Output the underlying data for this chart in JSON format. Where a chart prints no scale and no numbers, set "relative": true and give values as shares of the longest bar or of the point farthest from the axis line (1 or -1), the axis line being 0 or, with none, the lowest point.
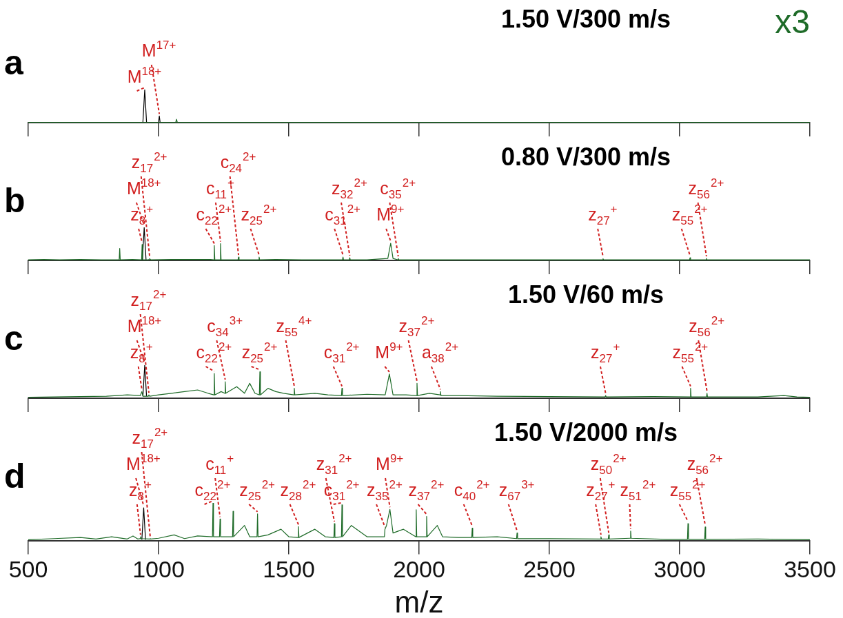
{
  "chart_data": [
    {
      "type": "line",
      "title": "a",
      "subtitle": "1.50 V/300 m/s",
      "relative": true,
      "marker": "none",
      "tick_labels": false,
      "xlim": [
        500,
        3500
      ],
      "xticks": [
        500,
        1000,
        1500,
        2000,
        2500,
        3000,
        3500
      ],
      "annotations": [
        {
          "text": "M$^{18+}$",
          "x": 947,
          "y": 1
        },
        {
          "text": "M$^{17+}$",
          "x": 1003,
          "y": 0.2
        },
        "x3"
      ],
      "series": [
        {
          "color": "#1e6b28",
          "x": [
            500,
            700,
            900,
            935,
            1066,
            1069,
            1072,
            1200,
            1500,
            2000,
            2500,
            3000,
            3500
          ],
          "values": [
            0.01,
            0.01,
            0.01,
            0.01,
            0.01,
            0.1,
            0.01,
            0.01,
            0.01,
            0.01,
            0.01,
            0.01,
            0.01
          ]
        },
        {
          "color": "#000000",
          "x": [
            940,
            947,
            954,
            1000,
            1003,
            1006
          ],
          "values": [
            0.01,
            1,
            0.01,
            0.01,
            0.2,
            0.01
          ]
        }
      ]
    },
    {
      "type": "line",
      "title": "b",
      "subtitle": "0.80 V/300 m/s",
      "relative": true,
      "marker": "none",
      "tick_labels": false,
      "xlim": [
        500,
        3500
      ],
      "xticks": [
        500,
        1000,
        1500,
        2000,
        2500,
        3000,
        3500
      ],
      "annotations": [
        {
          "text": "z$_{8}$$^{+}$",
          "x": 937,
          "y": 0.48
        },
        {
          "text": "M$^{18+}$",
          "x": 945,
          "y": 1
        },
        {
          "text": "z$_{17}$$^{2+}$",
          "x": 966,
          "y": 0.05
        },
        {
          "text": "c$_{22}$$^{2+}$",
          "x": 1214,
          "y": 0.45
        },
        {
          "text": "c$_{11}$$^{+}$",
          "x": 1238,
          "y": 0.51
        },
        {
          "text": "c$_{24}$$^{2+}$",
          "x": 1307,
          "y": 0.1
        },
        {
          "text": "z$_{25}$$^{2+}$",
          "x": 1386,
          "y": 0.1
        },
        {
          "text": "c$_{31}$$^{2+}$",
          "x": 1708,
          "y": 0.1
        },
        {
          "text": "z$_{32}$$^{2+}$",
          "x": 1734,
          "y": 0.08
        },
        {
          "text": "M$^{9+}$",
          "x": 1891,
          "y": 0.52
        },
        {
          "text": "c$_{35}$$^{2+}$",
          "x": 1920,
          "y": 0.06
        },
        {
          "text": "z$_{27}$$^{+}$",
          "x": 2706,
          "y": 0.05
        },
        {
          "text": "z$_{55}$$^{2+}$",
          "x": 3040,
          "y": 0.08
        },
        {
          "text": "z$_{56}$$^{2+}$",
          "x": 3103,
          "y": 0.06
        }
      ],
      "series": [
        {
          "color": "#1e6b28",
          "x": [
            500,
            560,
            620,
            700,
            780,
            849,
            851,
            853,
            900,
            935,
            937,
            939,
            962,
            966,
            970,
            1050,
            1120,
            1200,
            1212,
            1214,
            1216,
            1236,
            1238,
            1240,
            1305,
            1307,
            1309,
            1384,
            1386,
            1388,
            1450,
            1550,
            1650,
            1706,
            1708,
            1710,
            1732,
            1734,
            1736,
            1800,
            1880,
            1891,
            1900,
            1918,
            1920,
            1922,
            2000,
            2100,
            2200,
            2300,
            2400,
            2500,
            2600,
            2704,
            2706,
            2708,
            2800,
            2900,
            3000,
            3038,
            3040,
            3042,
            3101,
            3103,
            3105,
            3200,
            3300,
            3400,
            3500
          ],
          "values": [
            0.02,
            0.03,
            0.02,
            0.03,
            0.02,
            0.02,
            0.36,
            0.02,
            0.03,
            0.02,
            0.48,
            0.02,
            0.02,
            0.05,
            0.02,
            0.03,
            0.03,
            0.03,
            0.02,
            0.45,
            0.02,
            0.02,
            0.51,
            0.02,
            0.02,
            0.1,
            0.02,
            0.02,
            0.1,
            0.02,
            0.03,
            0.02,
            0.02,
            0.02,
            0.1,
            0.02,
            0.02,
            0.08,
            0.02,
            0.02,
            0.06,
            0.52,
            0.06,
            0.02,
            0.06,
            0.02,
            0.02,
            0.02,
            0.02,
            0.02,
            0.02,
            0.02,
            0.02,
            0.02,
            0.05,
            0.02,
            0.02,
            0.02,
            0.02,
            0.02,
            0.08,
            0.02,
            0.02,
            0.06,
            0.02,
            0.02,
            0.02,
            0.02,
            0.02
          ]
        },
        {
          "color": "#000000",
          "x": [
            938,
            945,
            952
          ],
          "values": [
            0.02,
            1,
            0.02
          ]
        }
      ]
    },
    {
      "type": "line",
      "title": "c",
      "subtitle": "1.50 V/60 m/s",
      "relative": true,
      "marker": "none",
      "tick_labels": false,
      "xlim": [
        500,
        3500
      ],
      "xticks": [
        500,
        1000,
        1500,
        2000,
        2500,
        3000,
        3500
      ],
      "annotations": [
        {
          "text": "z$_{8}$$^{+}$",
          "x": 936,
          "y": 0.2
        },
        {
          "text": "M$^{18+}$",
          "x": 947,
          "y": 1
        },
        {
          "text": "z$_{17}$$^{2+}$",
          "x": 963,
          "y": 0.1
        },
        {
          "text": "c$_{22}$$^{2+}$",
          "x": 1214,
          "y": 0.75
        },
        {
          "text": "c$_{34}$$^{3+}$",
          "x": 1256,
          "y": 0.5
        },
        {
          "text": "z$_{25}$$^{2+}$",
          "x": 1389,
          "y": 0.8
        },
        {
          "text": "z$_{55}$$^{4+}$",
          "x": 1521,
          "y": 0.3
        },
        {
          "text": "c$_{31}$$^{2+}$",
          "x": 1704,
          "y": 0.3
        },
        {
          "text": "M$^{9+}$",
          "x": 1886,
          "y": 0.73
        },
        {
          "text": "z$_{37}$$^{2+}$",
          "x": 1992,
          "y": 0.45
        },
        {
          "text": "a$_{38}$$^{2+}$",
          "x": 2082,
          "y": 0.2
        },
        {
          "text": "z$_{27}$$^{+}$",
          "x": 2716,
          "y": 0.08
        },
        {
          "text": "z$_{55}$$^{2+}$",
          "x": 3042,
          "y": 0.3
        },
        {
          "text": "z$_{56}$$^{2+}$",
          "x": 3105,
          "y": 0.15
        }
      ],
      "series": [
        {
          "color": "#1e6b28",
          "x": [
            500,
            600,
            700,
            800,
            880,
            930,
            936,
            940,
            961,
            963,
            966,
            1000,
            1050,
            1100,
            1150,
            1190,
            1212,
            1214,
            1216,
            1240,
            1254,
            1256,
            1258,
            1300,
            1330,
            1350,
            1370,
            1387,
            1389,
            1391,
            1420,
            1450,
            1480,
            1519,
            1521,
            1523,
            1600,
            1650,
            1702,
            1704,
            1706,
            1800,
            1870,
            1886,
            1900,
            1950,
            1990,
            1992,
            1994,
            2040,
            2080,
            2082,
            2084,
            2150,
            2300,
            2500,
            2714,
            2716,
            2718,
            2900,
            3040,
            3042,
            3044,
            3103,
            3105,
            3107,
            3300,
            3400,
            3450,
            3500
          ],
          "values": [
            0.03,
            0.04,
            0.05,
            0.06,
            0.1,
            0.08,
            0.2,
            0.06,
            0.06,
            0.1,
            0.06,
            0.1,
            0.15,
            0.2,
            0.25,
            0.15,
            0.1,
            0.75,
            0.1,
            0.2,
            0.15,
            0.5,
            0.15,
            0.35,
            0.15,
            0.45,
            0.15,
            0.1,
            0.8,
            0.1,
            0.3,
            0.2,
            0.15,
            0.1,
            0.3,
            0.1,
            0.15,
            0.1,
            0.08,
            0.3,
            0.08,
            0.12,
            0.1,
            0.73,
            0.1,
            0.1,
            0.08,
            0.45,
            0.08,
            0.15,
            0.1,
            0.2,
            0.08,
            0.08,
            0.06,
            0.05,
            0.04,
            0.08,
            0.04,
            0.05,
            0.04,
            0.3,
            0.04,
            0.04,
            0.15,
            0.04,
            0.04,
            0.08,
            0.04,
            0.03
          ]
        },
        {
          "color": "#000000",
          "x": [
            940,
            947,
            954
          ],
          "values": [
            0.06,
            1,
            0.06
          ]
        }
      ]
    },
    {
      "type": "line",
      "title": "d",
      "subtitle": "1.50 V/2000 m/s",
      "xlabel": "m/z",
      "relative": true,
      "marker": "none",
      "xlim": [
        500,
        3500
      ],
      "xticks": [
        500,
        1000,
        1500,
        2000,
        2500,
        3000,
        3500
      ],
      "annotations": [
        {
          "text": "z$_{8}$$^{+}$",
          "x": 931,
          "y": 0.1
        },
        {
          "text": "M$^{18+}$",
          "x": 943,
          "y": 0.87
        },
        {
          "text": "z$_{17}$$^{2+}$",
          "x": 968,
          "y": 0.05
        },
        {
          "text": "c$_{22}$$^{2+}$",
          "x": 1209,
          "y": 1
        },
        {
          "text": "c$_{11}$$^{+}$",
          "x": 1236,
          "y": 0.57
        },
        {
          "text": "z$_{25}$$^{2+}$",
          "x": 1380,
          "y": 0.71
        },
        {
          "text": "z$_{28}$$^{2+}$",
          "x": 1537,
          "y": 0.37
        },
        {
          "text": "z$_{31}$$^{2+}$",
          "x": 1675,
          "y": 0.45
        },
        {
          "text": "c$_{31}$$^{2+}$",
          "x": 1704,
          "y": 0.95
        },
        {
          "text": "z$_{35}$$^{2+}$",
          "x": 1869,
          "y": 0.3
        },
        {
          "text": "M$^{9+}$",
          "x": 1888,
          "y": 0.83
        },
        {
          "text": "z$_{37}$$^{2+}$",
          "x": 2029,
          "y": 0.64
        },
        {
          "text": "c$_{40}$$^{2+}$",
          "x": 2204,
          "y": 0.33
        },
        {
          "text": "z$_{67}$$^{3+}$",
          "x": 2376,
          "y": 0.2
        },
        {
          "text": "z$_{27}$$^{+}$",
          "x": 2698,
          "y": 0.1
        },
        {
          "text": "z$_{50}$$^{2+}$",
          "x": 2728,
          "y": 0.15
        },
        {
          "text": "z$_{51}$$^{2+}$",
          "x": 2812,
          "y": 0.25
        },
        {
          "text": "z$_{55}$$^{2+}$",
          "x": 3032,
          "y": 0.45
        },
        {
          "text": "z$_{56}$$^{2+}$",
          "x": 3098,
          "y": 0.36
        }
      ],
      "series": [
        {
          "color": "#1e6b28",
          "x": [
            500,
            600,
            700,
            760,
            820,
            880,
            902,
            920,
            929,
            931,
            933,
            966,
            968,
            970,
            1000,
            1060,
            1100,
            1150,
            1207,
            1209,
            1211,
            1234,
            1236,
            1238,
            1284,
            1286,
            1288,
            1330,
            1350,
            1378,
            1380,
            1382,
            1420,
            1470,
            1500,
            1535,
            1537,
            1539,
            1600,
            1640,
            1673,
            1675,
            1677,
            1702,
            1704,
            1706,
            1740,
            1800,
            1867,
            1869,
            1875,
            1888,
            1900,
            1940,
            1987,
            1989,
            1991,
            2027,
            2029,
            2031,
            2070,
            2090,
            2150,
            2202,
            2204,
            2206,
            2300,
            2374,
            2376,
            2378,
            2500,
            2696,
            2698,
            2700,
            2726,
            2728,
            2730,
            2810,
            2812,
            2814,
            2950,
            3030,
            3032,
            3034,
            3096,
            3098,
            3100,
            3300,
            3500
          ],
          "values": [
            0.02,
            0.05,
            0.08,
            0.04,
            0.1,
            0.04,
            0.12,
            0.04,
            0.05,
            0.1,
            0.05,
            0.04,
            0.05,
            0.04,
            0.06,
            0.15,
            0.05,
            0.12,
            0.1,
            1,
            0.1,
            0.1,
            0.57,
            0.1,
            0.1,
            0.78,
            0.1,
            0.4,
            0.1,
            0.1,
            0.71,
            0.1,
            0.15,
            0.3,
            0.1,
            0.08,
            0.37,
            0.08,
            0.3,
            0.1,
            0.08,
            0.45,
            0.08,
            0.1,
            0.95,
            0.1,
            0.4,
            0.1,
            0.1,
            0.3,
            0.4,
            0.83,
            0.2,
            0.3,
            0.1,
            0.82,
            0.1,
            0.1,
            0.64,
            0.1,
            0.4,
            0.1,
            0.08,
            0.08,
            0.33,
            0.08,
            0.1,
            0.05,
            0.2,
            0.05,
            0.05,
            0.04,
            0.1,
            0.04,
            0.04,
            0.15,
            0.04,
            0.06,
            0.25,
            0.06,
            0.03,
            0.03,
            0.45,
            0.03,
            0.03,
            0.36,
            0.03,
            0.04,
            0.02
          ]
        },
        {
          "color": "#000000",
          "x": [
            936,
            943,
            950
          ],
          "values": [
            0.02,
            0.87,
            0.02
          ]
        }
      ]
    }
  ]
}
